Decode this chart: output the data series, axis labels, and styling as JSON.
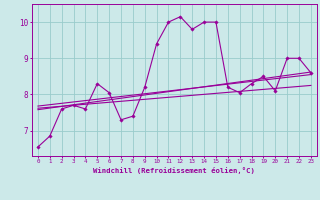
{
  "xlabel": "Windchill (Refroidissement éolien,°C)",
  "xlim": [
    -0.5,
    23.5
  ],
  "ylim": [
    6.3,
    10.5
  ],
  "xticks": [
    0,
    1,
    2,
    3,
    4,
    5,
    6,
    7,
    8,
    9,
    10,
    11,
    12,
    13,
    14,
    15,
    16,
    17,
    18,
    19,
    20,
    21,
    22,
    23
  ],
  "yticks": [
    7,
    8,
    9,
    10
  ],
  "bg_color": "#cce9e9",
  "line_color": "#990099",
  "grid_color": "#99cccc",
  "main_x": [
    0,
    1,
    2,
    3,
    4,
    5,
    6,
    7,
    8,
    9,
    10,
    11,
    12,
    13,
    14,
    15,
    16,
    17,
    18,
    19,
    20,
    21,
    22,
    23
  ],
  "main_y": [
    6.55,
    6.85,
    7.6,
    7.7,
    7.6,
    8.3,
    8.05,
    7.3,
    7.4,
    8.2,
    9.4,
    10.0,
    10.15,
    9.8,
    10.0,
    10.0,
    8.2,
    8.05,
    8.3,
    8.5,
    8.1,
    9.0,
    9.0,
    8.6
  ],
  "trend1_x": [
    0,
    23
  ],
  "trend1_y": [
    7.62,
    8.25
  ],
  "trend2_x": [
    0,
    23
  ],
  "trend2_y": [
    7.68,
    8.55
  ],
  "trend3_x": [
    0,
    23
  ],
  "trend3_y": [
    7.58,
    8.62
  ]
}
